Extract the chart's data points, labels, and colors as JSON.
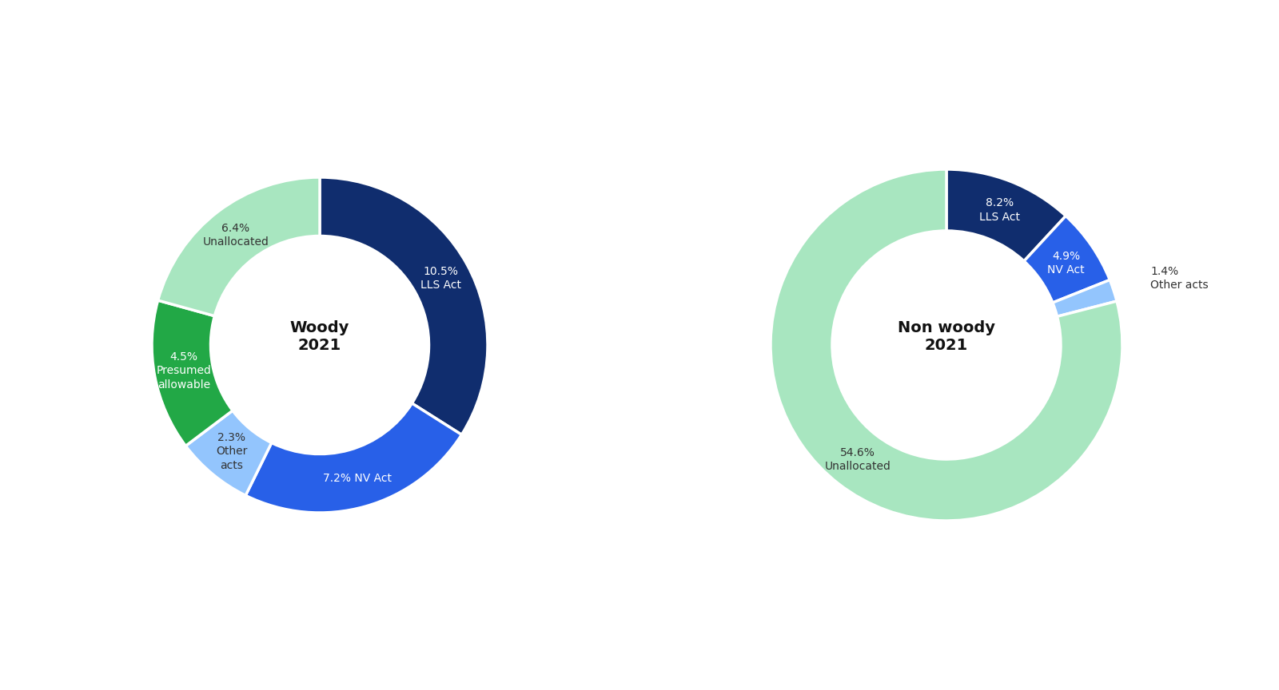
{
  "woody": {
    "labels": [
      "10.5%\nLLS Act",
      "7.2% NV Act",
      "2.3%\nOther\nacts",
      "4.5%\nPresumed\nallowable",
      "6.4%\nUnallocated"
    ],
    "values": [
      10.5,
      7.2,
      2.3,
      4.5,
      6.4
    ],
    "colors": [
      "#102d6e",
      "#2860e8",
      "#93c5fd",
      "#22a846",
      "#a8e6c0"
    ],
    "center_text": "Woody\n2021",
    "text_colors": [
      "white",
      "white",
      "#333333",
      "white",
      "#333333"
    ],
    "label_inside": [
      true,
      true,
      true,
      true,
      true
    ]
  },
  "nonwoody": {
    "labels": [
      "8.2%\nLLS Act",
      "4.9%\nNV Act",
      "1.4%\nOther acts",
      "54.6%\nUnallocated"
    ],
    "values": [
      8.2,
      4.9,
      1.4,
      54.6
    ],
    "colors": [
      "#102d6e",
      "#2860e8",
      "#93c5fd",
      "#a8e6c0"
    ],
    "center_text": "Non woody\n2021",
    "text_colors": [
      "white",
      "white",
      "#333333",
      "#333333"
    ],
    "label_inside": [
      true,
      true,
      false,
      true
    ]
  },
  "background_color": "#ffffff",
  "donut_width": 0.35,
  "figsize": [
    16.0,
    8.64
  ],
  "dpi": 100
}
